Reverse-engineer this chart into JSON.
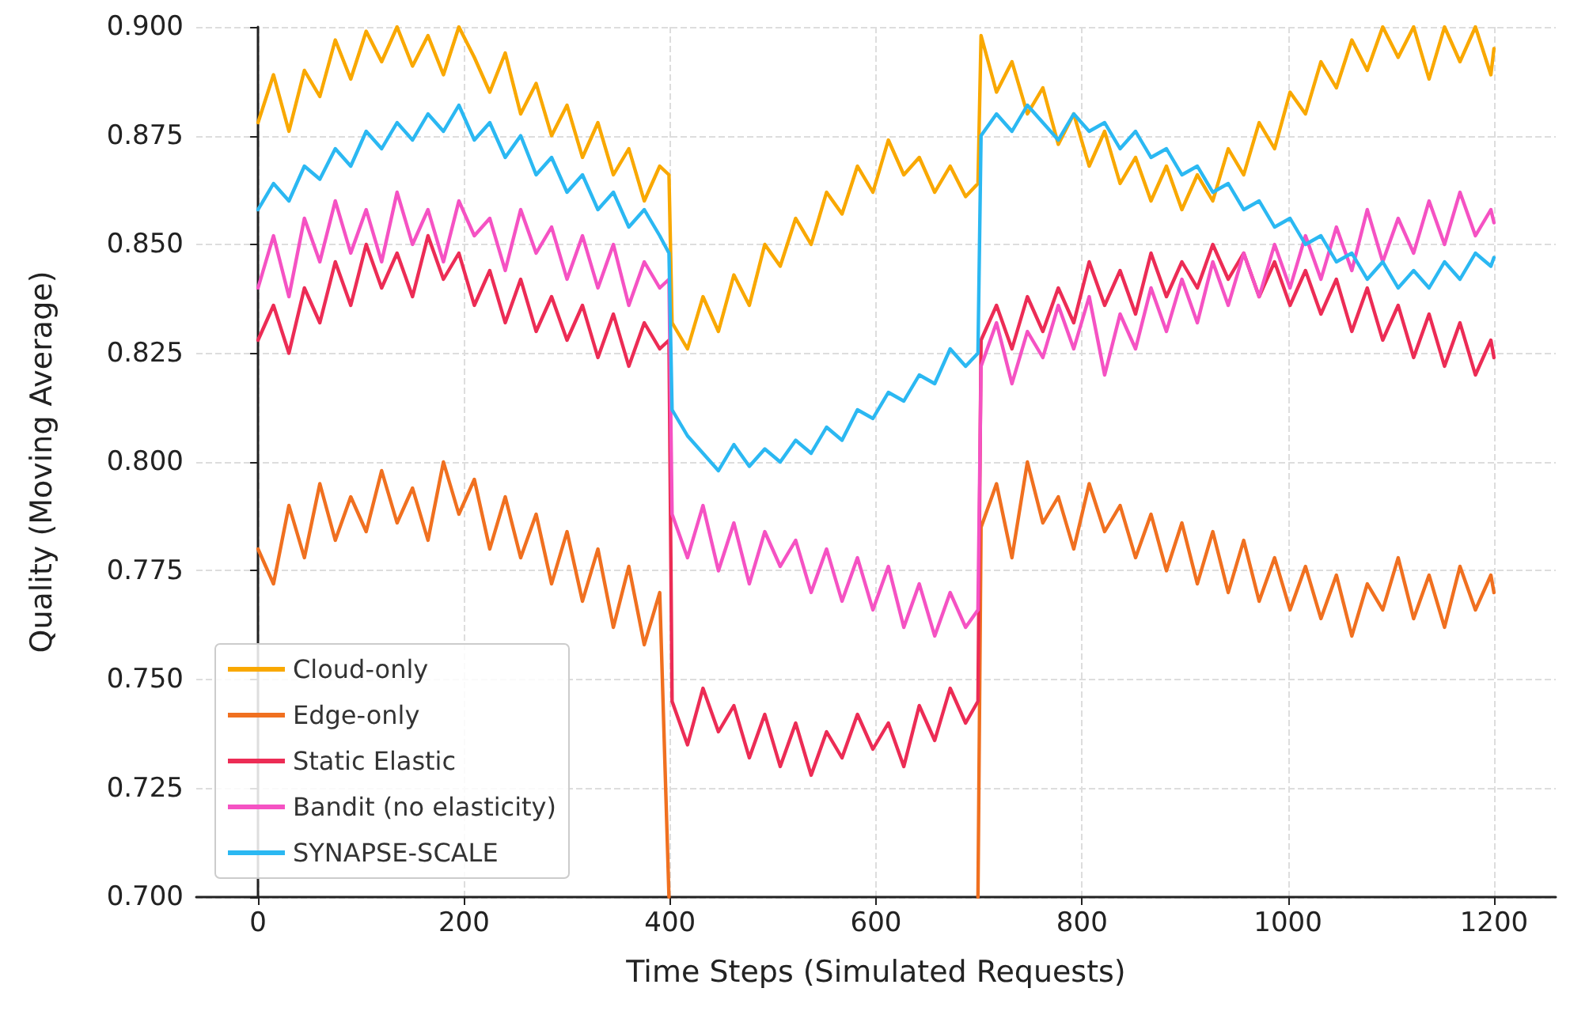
{
  "chart_data": {
    "type": "line",
    "xlabel": "Time Steps (Simulated Requests)",
    "ylabel": "Quality (Moving Average)",
    "x": [
      0,
      15,
      30,
      45,
      60,
      75,
      90,
      105,
      120,
      135,
      150,
      165,
      180,
      195,
      210,
      225,
      240,
      255,
      270,
      285,
      300,
      315,
      330,
      345,
      360,
      375,
      390,
      399,
      402,
      417,
      432,
      447,
      462,
      477,
      492,
      507,
      522,
      537,
      552,
      567,
      582,
      597,
      612,
      627,
      642,
      657,
      672,
      687,
      699,
      702,
      717,
      732,
      747,
      762,
      777,
      792,
      807,
      822,
      837,
      852,
      867,
      882,
      897,
      912,
      927,
      942,
      957,
      972,
      987,
      1002,
      1017,
      1032,
      1047,
      1062,
      1077,
      1092,
      1107,
      1122,
      1137,
      1152,
      1167,
      1182,
      1197,
      1200
    ],
    "series": [
      {
        "name": "Cloud-only",
        "color": "#f9a800",
        "values": [
          0.878,
          0.889,
          0.876,
          0.89,
          0.884,
          0.897,
          0.888,
          0.899,
          0.892,
          0.9,
          0.891,
          0.898,
          0.889,
          0.9,
          0.893,
          0.885,
          0.894,
          0.88,
          0.887,
          0.875,
          0.882,
          0.87,
          0.878,
          0.866,
          0.872,
          0.86,
          0.868,
          0.866,
          0.832,
          0.826,
          0.838,
          0.83,
          0.843,
          0.836,
          0.85,
          0.845,
          0.856,
          0.85,
          0.862,
          0.857,
          0.868,
          0.862,
          0.874,
          0.866,
          0.87,
          0.862,
          0.868,
          0.861,
          0.864,
          0.898,
          0.885,
          0.892,
          0.88,
          0.886,
          0.873,
          0.88,
          0.868,
          0.876,
          0.864,
          0.87,
          0.86,
          0.868,
          0.858,
          0.866,
          0.86,
          0.872,
          0.866,
          0.878,
          0.872,
          0.885,
          0.88,
          0.892,
          0.886,
          0.897,
          0.89,
          0.9,
          0.893,
          0.9,
          0.888,
          0.9,
          0.892,
          0.9,
          0.889,
          0.895
        ]
      },
      {
        "name": "Edge-only",
        "color": "#f07020",
        "values": [
          0.78,
          0.772,
          0.79,
          0.778,
          0.795,
          0.782,
          0.792,
          0.784,
          0.798,
          0.786,
          0.794,
          0.782,
          0.8,
          0.788,
          0.796,
          0.78,
          0.792,
          0.778,
          0.788,
          0.772,
          0.784,
          0.768,
          0.78,
          0.762,
          0.776,
          0.758,
          0.77,
          0.7,
          null,
          null,
          null,
          null,
          null,
          null,
          null,
          null,
          null,
          null,
          null,
          null,
          null,
          null,
          null,
          null,
          null,
          null,
          null,
          null,
          0.7,
          0.785,
          0.795,
          0.778,
          0.8,
          0.786,
          0.792,
          0.78,
          0.795,
          0.784,
          0.79,
          0.778,
          0.788,
          0.775,
          0.786,
          0.772,
          0.784,
          0.77,
          0.782,
          0.768,
          0.778,
          0.766,
          0.776,
          0.764,
          0.774,
          0.76,
          0.772,
          0.766,
          0.778,
          0.764,
          0.774,
          0.762,
          0.776,
          0.766,
          0.774,
          0.77
        ]
      },
      {
        "name": "Static Elastic",
        "color": "#ec2c55",
        "values": [
          0.828,
          0.836,
          0.825,
          0.84,
          0.832,
          0.846,
          0.836,
          0.85,
          0.84,
          0.848,
          0.838,
          0.852,
          0.842,
          0.848,
          0.836,
          0.844,
          0.832,
          0.842,
          0.83,
          0.838,
          0.828,
          0.836,
          0.824,
          0.834,
          0.822,
          0.832,
          0.826,
          0.828,
          0.745,
          0.735,
          0.748,
          0.738,
          0.744,
          0.732,
          0.742,
          0.73,
          0.74,
          0.728,
          0.738,
          0.732,
          0.742,
          0.734,
          0.74,
          0.73,
          0.744,
          0.736,
          0.748,
          0.74,
          0.745,
          0.828,
          0.836,
          0.826,
          0.838,
          0.83,
          0.84,
          0.832,
          0.846,
          0.836,
          0.844,
          0.834,
          0.848,
          0.838,
          0.846,
          0.84,
          0.85,
          0.842,
          0.848,
          0.838,
          0.846,
          0.836,
          0.844,
          0.834,
          0.842,
          0.83,
          0.84,
          0.828,
          0.836,
          0.824,
          0.834,
          0.822,
          0.832,
          0.82,
          0.828,
          0.824
        ]
      },
      {
        "name": "Bandit (no elasticity)",
        "color": "#f552c3",
        "values": [
          0.84,
          0.852,
          0.838,
          0.856,
          0.846,
          0.86,
          0.848,
          0.858,
          0.846,
          0.862,
          0.85,
          0.858,
          0.846,
          0.86,
          0.852,
          0.856,
          0.844,
          0.858,
          0.848,
          0.854,
          0.842,
          0.852,
          0.84,
          0.85,
          0.836,
          0.846,
          0.84,
          0.842,
          0.788,
          0.778,
          0.79,
          0.775,
          0.786,
          0.772,
          0.784,
          0.776,
          0.782,
          0.77,
          0.78,
          0.768,
          0.778,
          0.766,
          0.776,
          0.762,
          0.772,
          0.76,
          0.77,
          0.762,
          0.766,
          0.822,
          0.832,
          0.818,
          0.83,
          0.824,
          0.836,
          0.826,
          0.838,
          0.82,
          0.834,
          0.826,
          0.84,
          0.83,
          0.842,
          0.832,
          0.846,
          0.836,
          0.848,
          0.838,
          0.85,
          0.84,
          0.852,
          0.842,
          0.854,
          0.844,
          0.858,
          0.846,
          0.856,
          0.848,
          0.86,
          0.85,
          0.862,
          0.852,
          0.858,
          0.855
        ]
      },
      {
        "name": "SYNAPSE-SCALE",
        "color": "#2bb8f2",
        "values": [
          0.858,
          0.864,
          0.86,
          0.868,
          0.865,
          0.872,
          0.868,
          0.876,
          0.872,
          0.878,
          0.874,
          0.88,
          0.876,
          0.882,
          0.874,
          0.878,
          0.87,
          0.875,
          0.866,
          0.87,
          0.862,
          0.866,
          0.858,
          0.862,
          0.854,
          0.858,
          0.852,
          0.848,
          0.812,
          0.806,
          0.802,
          0.798,
          0.804,
          0.799,
          0.803,
          0.8,
          0.805,
          0.802,
          0.808,
          0.805,
          0.812,
          0.81,
          0.816,
          0.814,
          0.82,
          0.818,
          0.826,
          0.822,
          0.825,
          0.875,
          0.88,
          0.876,
          0.882,
          0.878,
          0.874,
          0.88,
          0.876,
          0.878,
          0.872,
          0.876,
          0.87,
          0.872,
          0.866,
          0.868,
          0.862,
          0.864,
          0.858,
          0.86,
          0.854,
          0.856,
          0.85,
          0.852,
          0.846,
          0.848,
          0.842,
          0.846,
          0.84,
          0.844,
          0.84,
          0.846,
          0.842,
          0.848,
          0.845,
          0.847
        ]
      }
    ],
    "xlim": [
      -60,
      1260
    ],
    "xticks": [
      0,
      200,
      400,
      600,
      800,
      1000,
      1200
    ],
    "ylim": [
      0.7,
      0.9
    ],
    "yticks": [
      {
        "value": 0.7,
        "label": "0.700"
      },
      {
        "value": 0.725,
        "label": "0.725"
      },
      {
        "value": 0.75,
        "label": "0.750"
      },
      {
        "value": 0.775,
        "label": "0.775"
      },
      {
        "value": 0.8,
        "label": "0.800"
      },
      {
        "value": 0.825,
        "label": "0.825"
      },
      {
        "value": 0.85,
        "label": "0.850"
      },
      {
        "value": 0.875,
        "label": "0.875"
      },
      {
        "value": 0.9,
        "label": "0.900"
      }
    ],
    "grid": true,
    "legend": "bottom left",
    "marker": "none",
    "line_style": "solid"
  }
}
